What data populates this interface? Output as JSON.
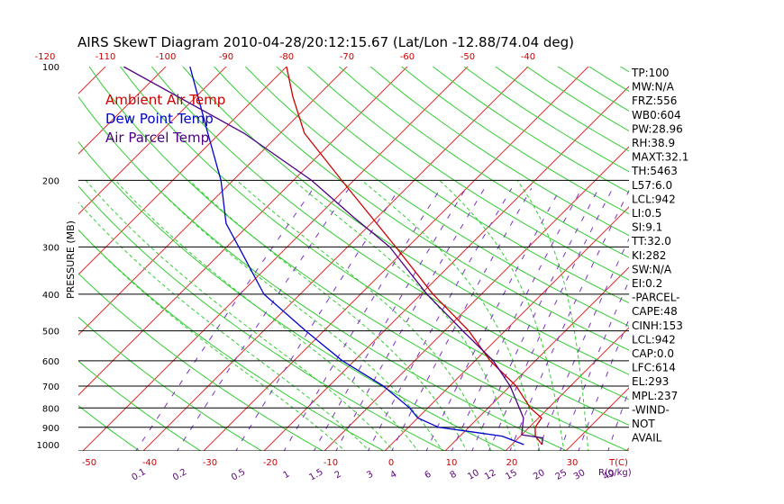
{
  "chart_data": {
    "type": "line",
    "title": "AIRS SkewT Diagram 2010-04-28/20:12:15.67 (Lat/Lon -12.88/74.04 deg)",
    "ylabel": "PRESSURE (MB)",
    "pressure_ticks": [
      "100",
      "200",
      "300",
      "400",
      "500",
      "600",
      "700",
      "800",
      "900",
      "1000"
    ],
    "pressure_values": [
      100,
      200,
      300,
      400,
      500,
      600,
      700,
      800,
      900,
      1000
    ],
    "top_temp_ticks": [
      "-120",
      "-110",
      "-100",
      "-90",
      "-80",
      "-70",
      "-60",
      "-50",
      "-40"
    ],
    "bottom_temp_ticks": [
      "-50",
      "-40",
      "-30",
      "-20",
      "-10",
      "0",
      "10",
      "20",
      "30"
    ],
    "bottom_unit_label": "T(C)",
    "mixing_ratio_labels": [
      "0.1",
      "0.2",
      "0.5",
      "1",
      "1.5",
      "2",
      "3",
      "4",
      "6",
      "8",
      "10",
      "12",
      "15",
      "20",
      "25",
      "30",
      "40"
    ],
    "mixing_unit_label": "R(g/kg)",
    "legend": [
      {
        "label": "Ambient Air Temp",
        "color": "#cc0000"
      },
      {
        "label": "Dew Point Temp",
        "color": "#0000cc"
      },
      {
        "label": "Air Parcel Temp",
        "color": "#4b0082"
      }
    ],
    "series": [
      {
        "name": "Ambient Air Temp",
        "color": "#cc0000",
        "points": [
          [
            1000,
            25.0
          ],
          [
            950,
            22.5
          ],
          [
            900,
            21.0
          ],
          [
            850,
            20.5
          ],
          [
            800,
            17.0
          ],
          [
            700,
            11.0
          ],
          [
            600,
            2.5
          ],
          [
            500,
            -6.0
          ],
          [
            400,
            -18.0
          ],
          [
            300,
            -32.0
          ],
          [
            250,
            -41.0
          ],
          [
            200,
            -52.0
          ],
          [
            150,
            -66.0
          ],
          [
            120,
            -74.0
          ],
          [
            100,
            -80.0
          ]
        ]
      },
      {
        "name": "Dew Point Temp",
        "color": "#0000cc",
        "points": [
          [
            1000,
            22.0
          ],
          [
            950,
            17.0
          ],
          [
            920,
            10.0
          ],
          [
            900,
            5.0
          ],
          [
            850,
            0.0
          ],
          [
            800,
            -3.0
          ],
          [
            700,
            -11.0
          ],
          [
            600,
            -22.0
          ],
          [
            500,
            -33.0
          ],
          [
            400,
            -46.0
          ],
          [
            300,
            -58.0
          ],
          [
            260,
            -64.0
          ],
          [
            200,
            -72.0
          ],
          [
            150,
            -82.0
          ],
          [
            100,
            -96.0
          ]
        ]
      },
      {
        "name": "Air Parcel Temp",
        "color": "#4b0082",
        "points": [
          [
            1000,
            25.0
          ],
          [
            960,
            24.0
          ],
          [
            942,
            20.0
          ],
          [
            850,
            17.5
          ],
          [
            700,
            10.0
          ],
          [
            600,
            3.0
          ],
          [
            500,
            -7.0
          ],
          [
            400,
            -19.0
          ],
          [
            300,
            -33.0
          ],
          [
            250,
            -44.0
          ],
          [
            200,
            -57.0
          ],
          [
            150,
            -76.0
          ],
          [
            100,
            -107.0
          ]
        ]
      }
    ],
    "indices": [
      "TP:100",
      "MW:N/A",
      "FRZ:556",
      "WB0:604",
      "PW:28.96",
      "RH:38.9",
      "MAXT:32.1",
      "TH:5463",
      "L57:6.0",
      "LCL:942",
      "LI:0.5",
      "SI:9.1",
      "TT:32.0",
      "KI:282",
      "SW:N/A",
      "EI:0.2",
      "-PARCEL-",
      "CAPE:48",
      "CINH:153",
      "LCL:942",
      "CAP:0.0",
      "LFC:614",
      "EL:293",
      "MPL:237",
      "-WIND-",
      "NOT",
      "AVAIL"
    ]
  }
}
